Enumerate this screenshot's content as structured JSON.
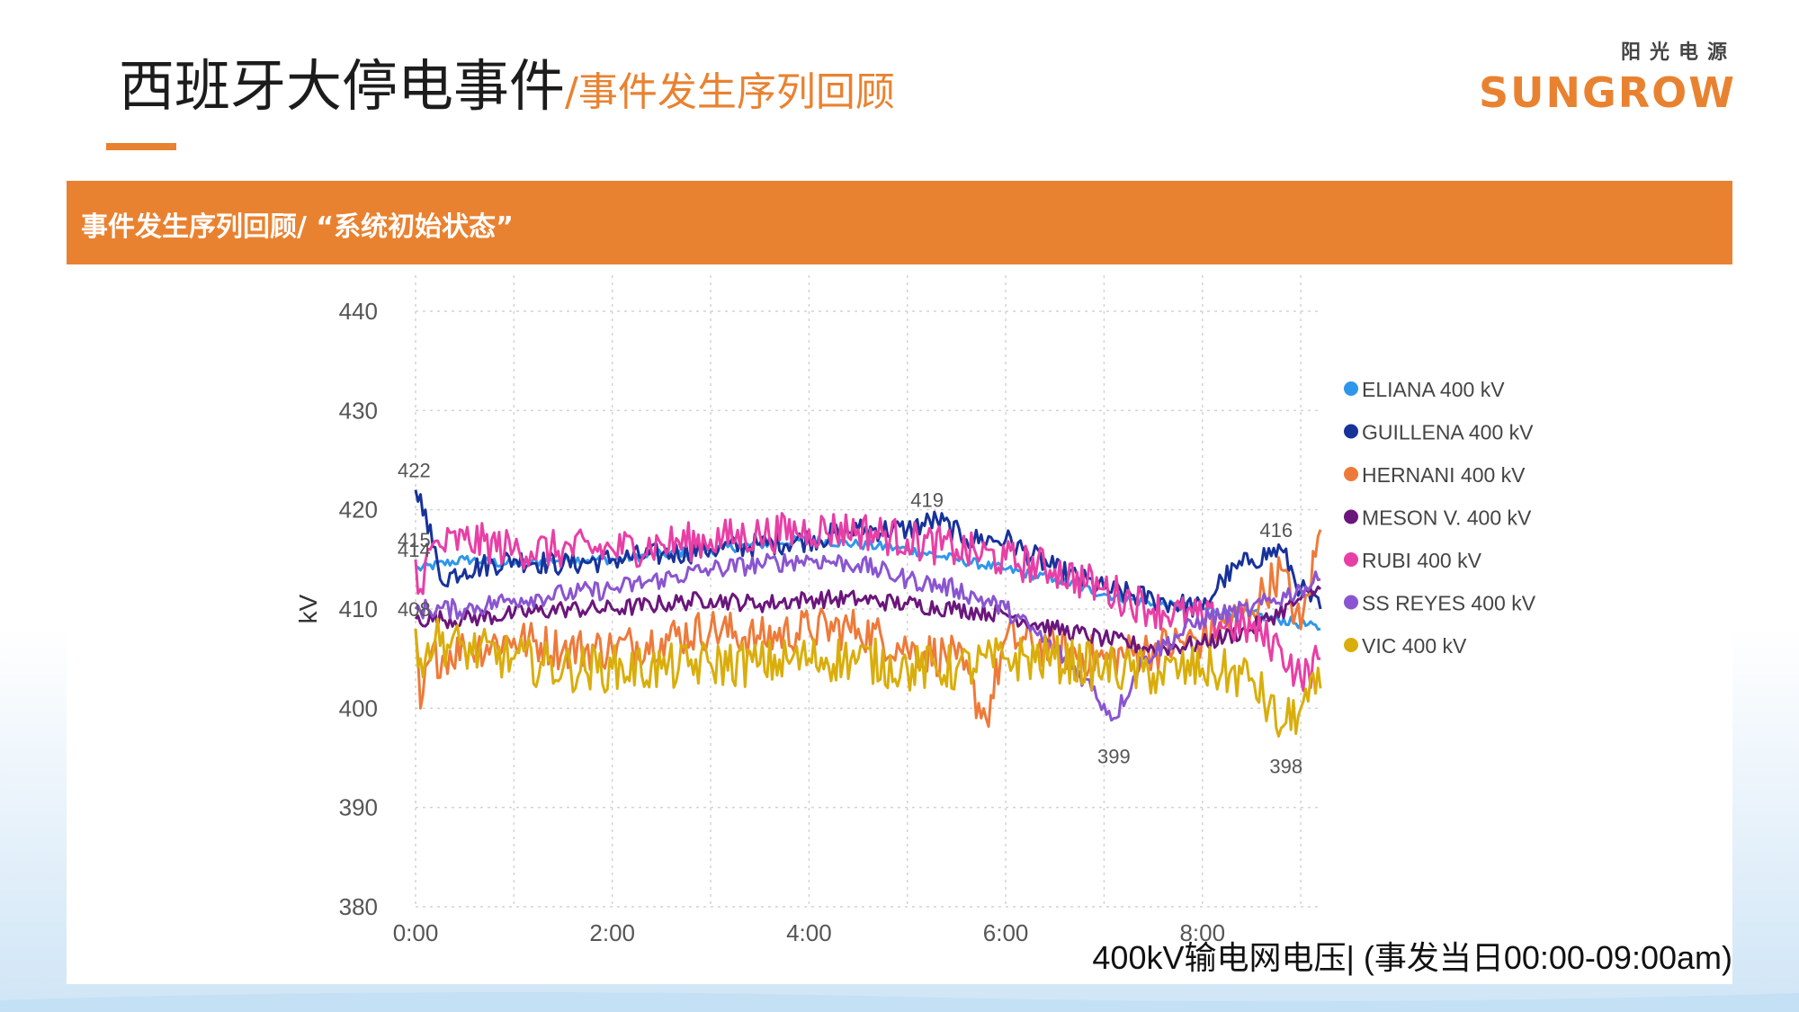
{
  "header": {
    "title": "西班牙大停电事件",
    "subtitle": "/事件发生序列回顾"
  },
  "logo": {
    "cn": "阳光电源",
    "en": "SUNGROW"
  },
  "section_bar": {
    "label": "事件发生序列回顾/ “系统初始状态”"
  },
  "caption": "400kV输电网电压| (事发当日00:00-09:00am)",
  "colors": {
    "accent": "#e98230",
    "ELIANA": "#2f97ea",
    "GUILLENA": "#18329a",
    "HERNANI": "#ee7a3a",
    "MESON": "#6b167c",
    "RUBI": "#e83fa6",
    "SS_REYES": "#8a55d0",
    "VIC": "#d9ae0c"
  },
  "chart_data": {
    "type": "line",
    "title": "",
    "xlabel": "",
    "ylabel": "kV",
    "xlim": [
      0,
      9.2
    ],
    "ylim": [
      380,
      440
    ],
    "x_ticks": [
      0,
      2,
      4,
      6,
      8
    ],
    "x_tick_labels": [
      "0:00",
      "2:00",
      "4:00",
      "6:00",
      "8:00"
    ],
    "y_ticks": [
      380,
      390,
      400,
      410,
      420,
      430,
      440
    ],
    "grid": true,
    "legend_position": "right",
    "series": [
      {
        "name": "ELIANA 400 kV",
        "color": "#2f97ea",
        "x": [
          0,
          0.5,
          1,
          1.5,
          2,
          2.5,
          3,
          3.5,
          4,
          4.5,
          5,
          5.5,
          6,
          6.5,
          7,
          7.5,
          8,
          8.5,
          9,
          9.2
        ],
        "y": [
          414,
          415,
          414.5,
          415,
          415,
          415.5,
          416,
          416.5,
          417,
          416.5,
          416,
          415,
          414,
          413,
          411.5,
          410.5,
          410,
          409.5,
          408.5,
          408
        ]
      },
      {
        "name": "GUILLENA 400 kV",
        "color": "#18329a",
        "x": [
          0,
          0.1,
          0.25,
          0.5,
          1,
          1.5,
          2,
          2.5,
          3,
          3.5,
          4,
          4.5,
          5,
          5.3,
          5.6,
          6,
          6.5,
          7,
          7.5,
          8,
          8.2,
          8.5,
          8.8,
          9,
          9.2
        ],
        "y": [
          422,
          420,
          413,
          414,
          415,
          414.5,
          415,
          415.5,
          416,
          416.5,
          417,
          418,
          418,
          419,
          417,
          417,
          414,
          412,
          411,
          410,
          413,
          415,
          416,
          412,
          410
        ]
      },
      {
        "name": "HERNANI 400 kV",
        "color": "#ee7a3a",
        "x": [
          0,
          0.05,
          0.15,
          0.5,
          1,
          1.5,
          2,
          2.5,
          3,
          3.5,
          4,
          4.5,
          5,
          5.5,
          5.8,
          6,
          6.5,
          7,
          7.5,
          8,
          8.5,
          8.8,
          9,
          9.2
        ],
        "y": [
          408,
          400,
          405,
          406,
          407,
          406,
          406,
          407,
          408,
          407,
          408,
          408,
          406,
          405,
          399,
          407,
          406,
          405,
          406,
          407,
          410,
          414,
          408,
          418
        ]
      },
      {
        "name": "MESON V. 400 kV",
        "color": "#6b167c",
        "x": [
          0,
          0.5,
          1,
          1.5,
          2,
          2.5,
          3,
          3.5,
          4,
          4.5,
          5,
          5.5,
          6,
          6.5,
          7,
          7.5,
          8,
          8.5,
          9,
          9.2
        ],
        "y": [
          409,
          409,
          409.5,
          410,
          410,
          410.5,
          411,
          410.5,
          411,
          411,
          410.5,
          410,
          409.5,
          408,
          407,
          406,
          406.5,
          408,
          411,
          412
        ]
      },
      {
        "name": "RUBI 400 kV",
        "color": "#e83fa6",
        "x": [
          0,
          0.05,
          0.15,
          0.5,
          1,
          1.5,
          2,
          2.5,
          3,
          3.5,
          4,
          4.5,
          5,
          5.5,
          6,
          6.5,
          7,
          7.5,
          8,
          8.5,
          8.8,
          9,
          9.2
        ],
        "y": [
          415,
          412,
          416,
          417,
          416,
          416,
          416,
          416.5,
          417,
          417.5,
          418,
          418,
          417,
          416,
          415,
          414,
          412,
          410,
          409,
          408,
          406,
          403,
          405
        ]
      },
      {
        "name": "SS REYES 400 kV",
        "color": "#8a55d0",
        "x": [
          0,
          0.5,
          1,
          1.5,
          2,
          2.5,
          3,
          3.5,
          4,
          4.5,
          5,
          5.5,
          6,
          6.5,
          6.8,
          7.1,
          7.4,
          8,
          8.5,
          9,
          9.2
        ],
        "y": [
          410,
          410,
          411,
          411.5,
          412,
          413,
          414,
          414.5,
          415,
          414.5,
          413,
          412,
          410,
          406,
          403,
          399,
          405,
          409,
          410,
          412,
          413
        ]
      },
      {
        "name": "VIC 400 kV",
        "color": "#d9ae0c",
        "x": [
          0,
          0.05,
          0.2,
          0.5,
          1,
          1.5,
          2,
          2.5,
          3,
          3.5,
          4,
          4.5,
          5,
          5.5,
          6,
          6.5,
          7,
          7.5,
          8,
          8.5,
          8.8,
          9,
          9.2
        ],
        "y": [
          408,
          405,
          407,
          406,
          405,
          404,
          404,
          404,
          404.5,
          404.5,
          405,
          405,
          404,
          404,
          405,
          405,
          404,
          403.5,
          404,
          403,
          398,
          400,
          402
        ]
      }
    ],
    "annotations": [
      {
        "text": "422",
        "x": 0.0,
        "y": 422
      },
      {
        "text": "415",
        "x": 0.0,
        "y": 415
      },
      {
        "text": "414",
        "x": 0.0,
        "y": 414
      },
      {
        "text": "408",
        "x": 0.0,
        "y": 408
      },
      {
        "text": "419",
        "x": 5.2,
        "y": 419
      },
      {
        "text": "416",
        "x": 8.75,
        "y": 416
      },
      {
        "text": "399",
        "x": 7.1,
        "y": 399
      },
      {
        "text": "398",
        "x": 8.85,
        "y": 398
      }
    ]
  }
}
